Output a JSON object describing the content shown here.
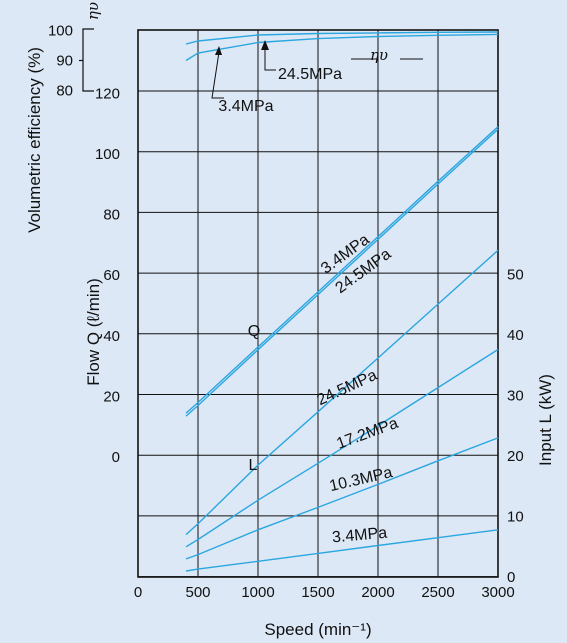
{
  "chart_data": {
    "type": "line",
    "title": "",
    "x": [
      400,
      500,
      1000,
      1500,
      2000,
      2500,
      3000
    ],
    "xlabel": "Speed (min⁻¹)",
    "xlim": [
      0,
      3000
    ],
    "xticks": [
      "0",
      "500",
      "1000",
      "1500",
      "2000",
      "2500",
      "3000"
    ],
    "grid": true,
    "axes": {
      "flow": {
        "label": "Flow Q (ℓ/min)",
        "side": "left",
        "ticks": [
          "0",
          "20",
          "40",
          "60",
          "80",
          "100",
          "120"
        ]
      },
      "efficiency": {
        "label": "Volumetric efficiency (%)",
        "symbol": "ηυ",
        "side": "left-top",
        "ticks": [
          "80",
          "90",
          "100"
        ]
      },
      "input": {
        "label": "Input L (kW)",
        "side": "right",
        "ticks": [
          "0",
          "10",
          "20",
          "30",
          "40",
          "50"
        ]
      }
    },
    "group_labels": {
      "flow": "Q",
      "input": "L",
      "efficiency": "ηυ"
    },
    "series": [
      {
        "name": "3.4MPa",
        "group": "efficiency",
        "unit": "%",
        "values": [
          95.5,
          96.5,
          98.5,
          99.0,
          99.2,
          99.4,
          99.5
        ]
      },
      {
        "name": "24.5MPa",
        "group": "efficiency",
        "unit": "%",
        "values": [
          90.0,
          92.5,
          96.0,
          97.3,
          98.0,
          98.4,
          98.7
        ]
      },
      {
        "name": "3.4MPa",
        "group": "flow",
        "unit": "ℓ/min",
        "values": [
          14.5,
          18.0,
          36.3,
          54.5,
          72.7,
          91.0,
          109.0
        ]
      },
      {
        "name": "24.5MPa",
        "group": "flow",
        "unit": "ℓ/min",
        "values": [
          13.5,
          17.0,
          35.4,
          53.6,
          71.8,
          90.1,
          108.2
        ]
      },
      {
        "name": "24.5MPa",
        "group": "input",
        "unit": "kW",
        "values": [
          7.0,
          8.8,
          18.5,
          27.3,
          36.2,
          45.1,
          54.0
        ]
      },
      {
        "name": "17.2MPa",
        "group": "input",
        "unit": "kW",
        "values": [
          5.0,
          6.2,
          12.7,
          18.8,
          25.0,
          31.3,
          37.6
        ]
      },
      {
        "name": "10.3MPa",
        "group": "input",
        "unit": "kW",
        "values": [
          3.0,
          3.7,
          7.8,
          11.5,
          15.3,
          19.2,
          23.0
        ]
      },
      {
        "name": "3.4MPa",
        "group": "input",
        "unit": "kW",
        "values": [
          1.0,
          1.3,
          2.6,
          3.9,
          5.2,
          6.5,
          7.8
        ]
      }
    ]
  }
}
